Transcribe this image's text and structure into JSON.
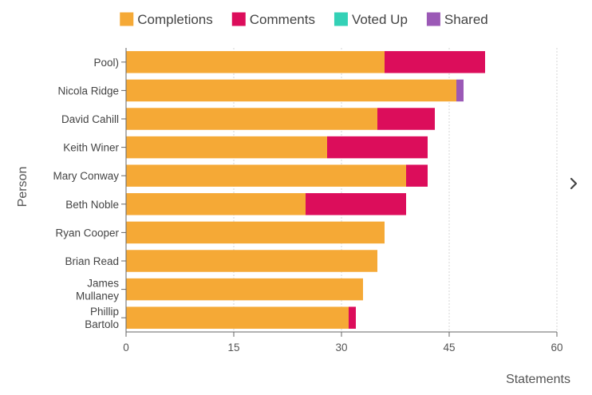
{
  "chart_data": {
    "type": "bar",
    "orientation": "horizontal",
    "stacked": true,
    "title": "",
    "xlabel": "Statements",
    "ylabel": "Person",
    "xlim": [
      0,
      60
    ],
    "x_ticks": [
      0,
      15,
      30,
      45,
      60
    ],
    "grid": true,
    "legend_position": "top",
    "categories": [
      "Pool)",
      "Nicola Ridge",
      "David Cahill",
      "Keith Winer",
      "Mary Conway",
      "Beth Noble",
      "Ryan Cooper",
      "Brian Read",
      "James Mullaney",
      "Phillip Bartolo"
    ],
    "series": [
      {
        "name": "Completions",
        "color": "#f5a936",
        "values": [
          36,
          46,
          35,
          28,
          39,
          25,
          36,
          35,
          33,
          31
        ]
      },
      {
        "name": "Comments",
        "color": "#dc0d5b",
        "values": [
          14,
          0,
          8,
          14,
          3,
          14,
          0,
          0,
          0,
          1
        ]
      },
      {
        "name": "Voted Up",
        "color": "#33d1b6",
        "values": [
          0,
          0,
          0,
          0,
          0,
          0,
          0,
          0,
          0,
          0
        ]
      },
      {
        "name": "Shared",
        "color": "#9b59b6",
        "values": [
          0,
          1,
          0,
          0,
          0,
          0,
          0,
          0,
          0,
          0
        ]
      }
    ]
  },
  "navigation": {
    "next_icon": "chevron-right-icon"
  }
}
